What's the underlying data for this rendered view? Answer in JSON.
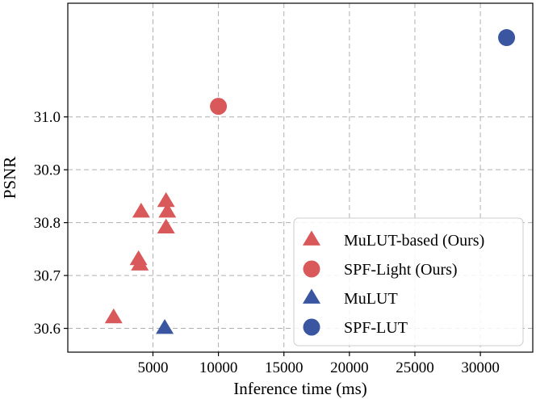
{
  "chart_data": {
    "type": "scatter",
    "title": "",
    "xlabel": "Inference time (ms)",
    "ylabel": "PSNR",
    "xlim": [
      -1500,
      34000
    ],
    "ylim": [
      30.555,
      31.215
    ],
    "xticks": [
      5000,
      10000,
      15000,
      20000,
      25000,
      30000
    ],
    "xtick_labels": [
      "5000",
      "10000",
      "15000",
      "20000",
      "25000",
      "30000"
    ],
    "yticks": [
      30.6,
      30.7,
      30.8,
      30.9,
      31.0
    ],
    "ytick_labels": [
      "30.6",
      "30.7",
      "30.8",
      "30.9",
      "31.0"
    ],
    "grid": true,
    "legend_position": "bottom-right",
    "series": [
      {
        "name": "MuLUT-based (Ours)",
        "marker": "triangle",
        "color": "#d9585a",
        "points": [
          {
            "x": 2000,
            "y": 30.62
          },
          {
            "x": 3900,
            "y": 30.73
          },
          {
            "x": 4000,
            "y": 30.72
          },
          {
            "x": 4100,
            "y": 30.82
          },
          {
            "x": 6000,
            "y": 30.84
          },
          {
            "x": 6100,
            "y": 30.82
          },
          {
            "x": 6000,
            "y": 30.79
          }
        ]
      },
      {
        "name": "SPF-Light (Ours)",
        "marker": "circle",
        "color": "#d9585a",
        "points": [
          {
            "x": 10000,
            "y": 31.02
          }
        ]
      },
      {
        "name": "MuLUT",
        "marker": "triangle",
        "color": "#3a56a0",
        "points": [
          {
            "x": 5900,
            "y": 30.6
          }
        ]
      },
      {
        "name": "SPF-LUT",
        "marker": "circle",
        "color": "#3a56a0",
        "points": [
          {
            "x": 32000,
            "y": 31.15
          }
        ]
      }
    ]
  }
}
